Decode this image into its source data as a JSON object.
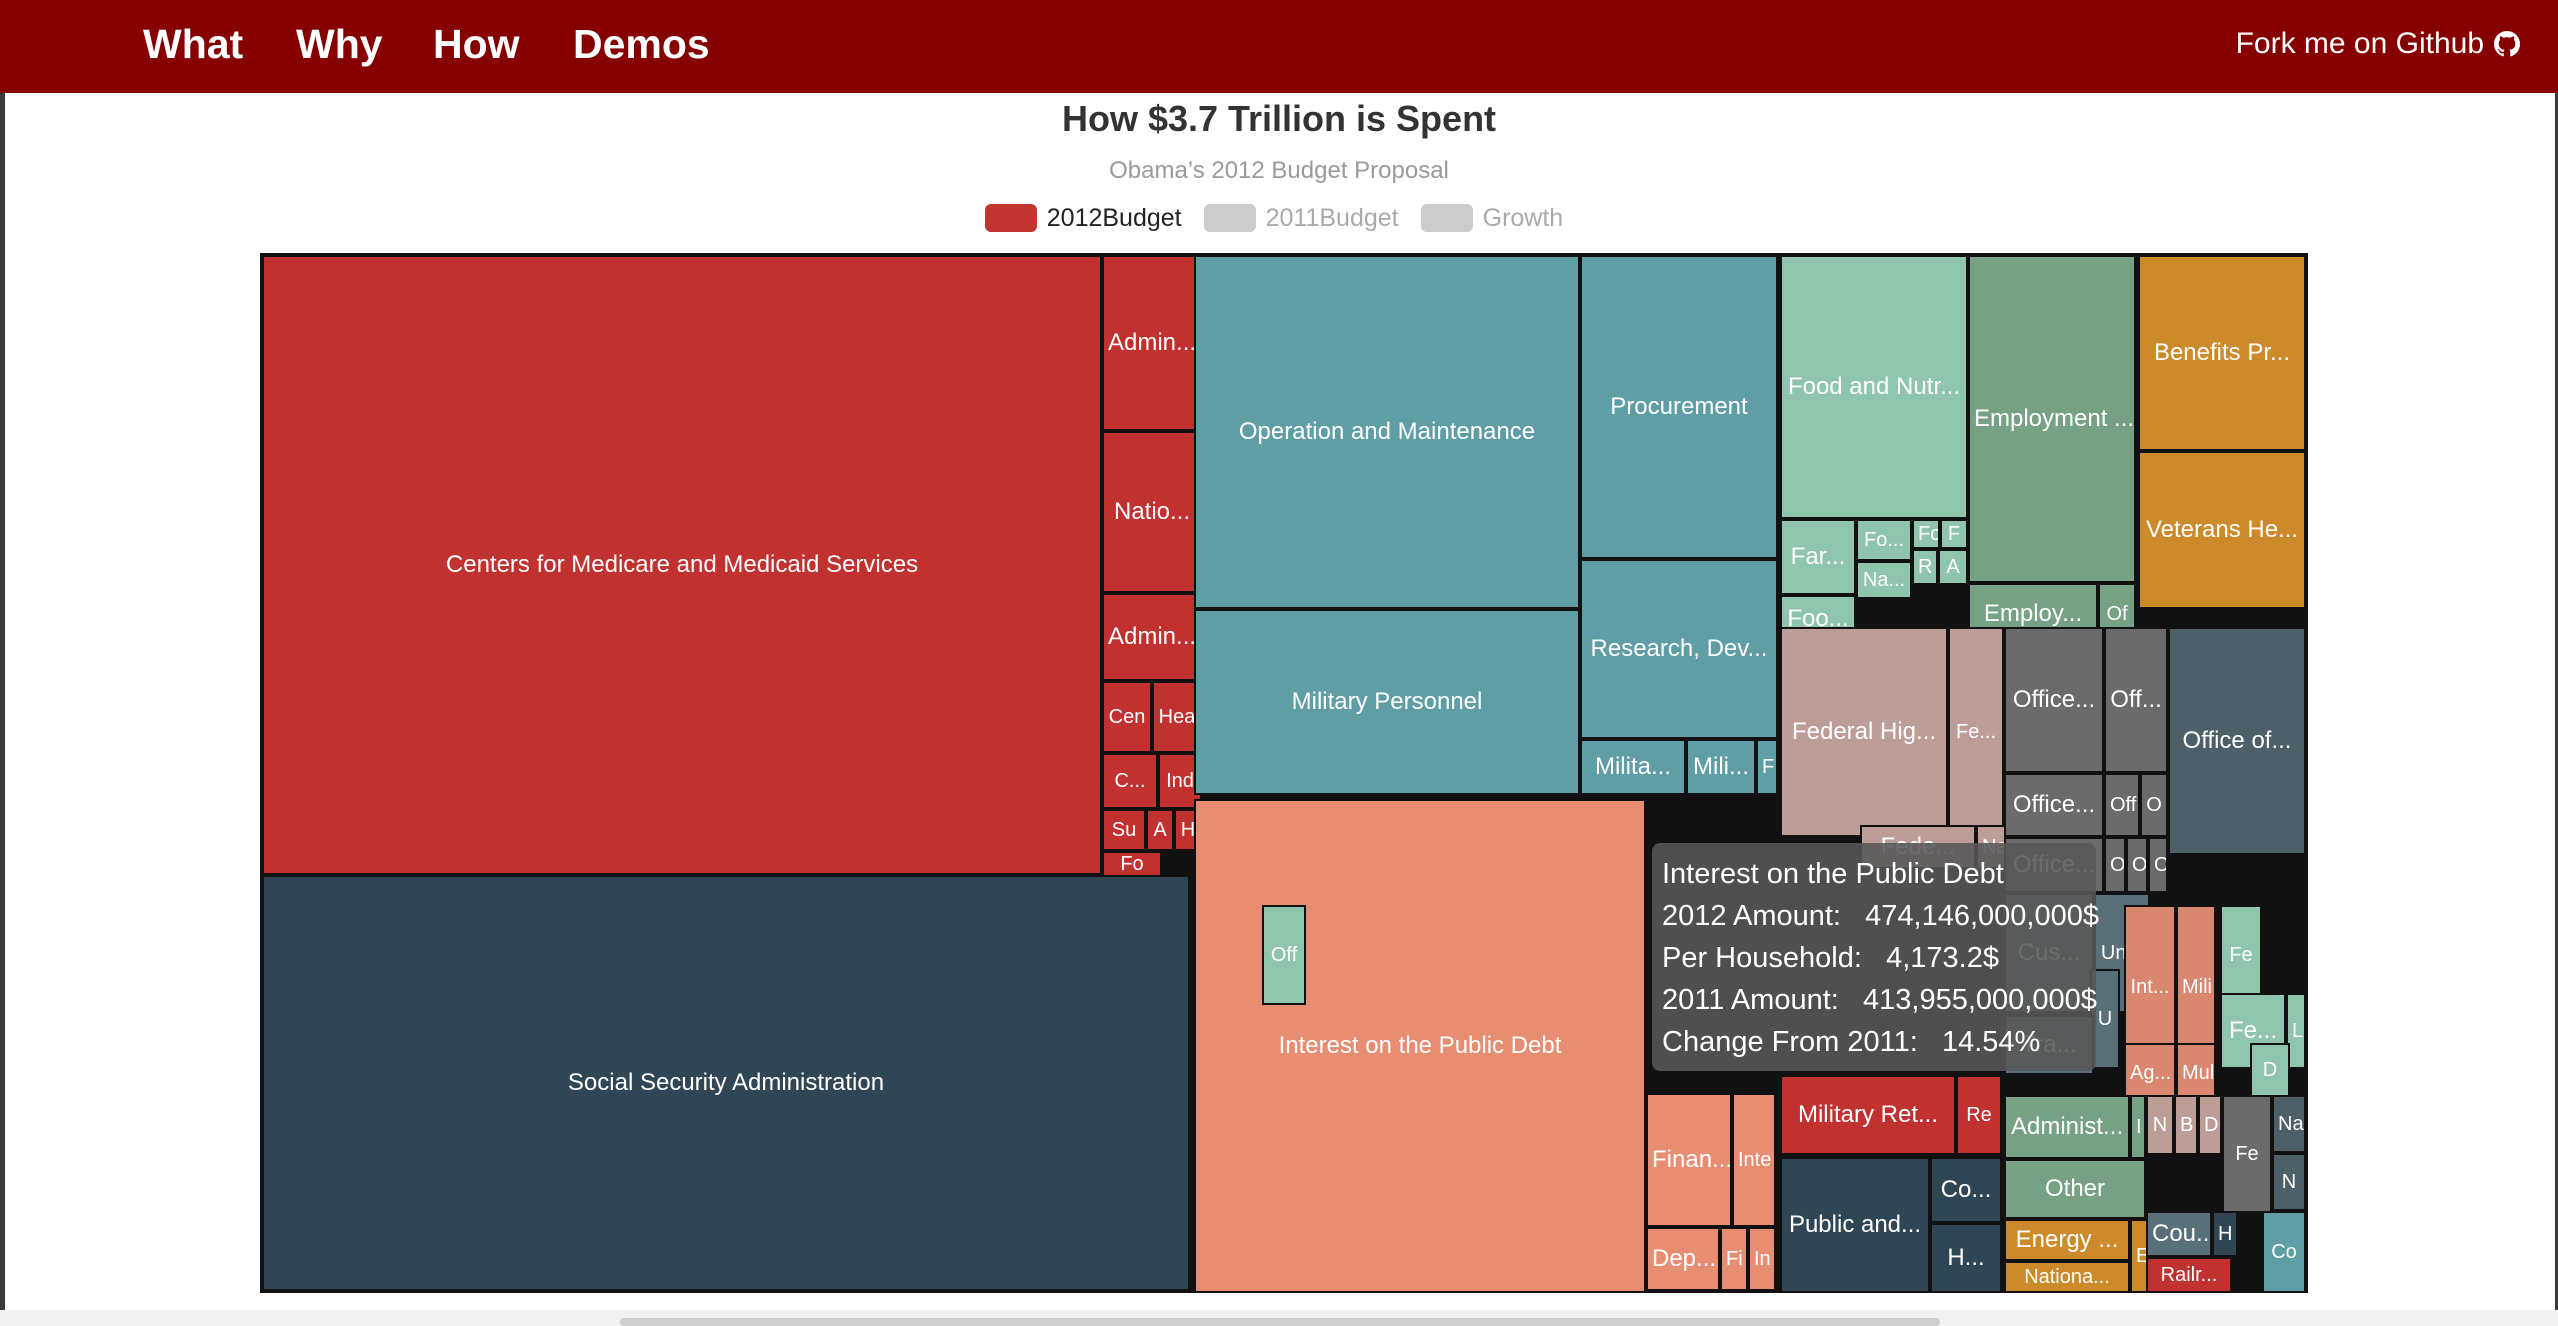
{
  "nav": {
    "links": [
      "What",
      "Why",
      "How",
      "Demos"
    ],
    "fork": "Fork me on Github"
  },
  "chart_data": {
    "type": "treemap",
    "title": "How $3.7 Trillion is Spent",
    "subtitle": "Obama’s 2012 Budget Proposal",
    "legend": [
      {
        "label": "2012Budget",
        "color": "#c23531",
        "active": true
      },
      {
        "label": "2011Budget",
        "color": "#cccccc",
        "active": false
      },
      {
        "label": "Growth",
        "color": "#cccccc",
        "active": false
      }
    ],
    "colors": {
      "hhs": "#c0312f",
      "ssa": "#304654",
      "defense": "#5f9ea5",
      "treasury": "#e78e72",
      "agriculture": "#8fc5ad",
      "labor": "#76a184",
      "va": "#cc8a2a",
      "transportation": "#bd9d98",
      "otherGray": "#6b6b6b",
      "opm": "#4d6068"
    },
    "items": [
      {
        "label": "Centers for Medicare and Medicaid Services",
        "group": "hhs"
      },
      {
        "label": "Admin...",
        "group": "hhs"
      },
      {
        "label": "Natio...",
        "group": "hhs"
      },
      {
        "label": "Admin...",
        "group": "hhs"
      },
      {
        "label": "Cen",
        "group": "hhs"
      },
      {
        "label": "Hea",
        "group": "hhs"
      },
      {
        "label": "C...",
        "group": "hhs"
      },
      {
        "label": "Ind",
        "group": "hhs"
      },
      {
        "label": "Su",
        "group": "hhs"
      },
      {
        "label": "A",
        "group": "hhs"
      },
      {
        "label": "H",
        "group": "hhs"
      },
      {
        "label": "Fo",
        "group": "hhs"
      },
      {
        "label": "Social Security Administration",
        "group": "ssa"
      },
      {
        "label": "Operation and Maintenance",
        "group": "defense"
      },
      {
        "label": "Procurement",
        "group": "defense"
      },
      {
        "label": "Military Personnel",
        "group": "defense"
      },
      {
        "label": "Research, Dev...",
        "group": "defense"
      },
      {
        "label": "Milita...",
        "group": "defense"
      },
      {
        "label": "Mili...",
        "group": "defense"
      },
      {
        "label": "F",
        "group": "defense"
      },
      {
        "label": "Interest on the Public Debt",
        "group": "treasury"
      },
      {
        "label": "Finan...",
        "group": "treasury"
      },
      {
        "label": "Inte",
        "group": "treasury"
      },
      {
        "label": "Dep...",
        "group": "treasury"
      },
      {
        "label": "Fi",
        "group": "treasury"
      },
      {
        "label": "In",
        "group": "treasury"
      },
      {
        "label": "Food and Nutr...",
        "group": "agriculture"
      },
      {
        "label": "Far...",
        "group": "agriculture"
      },
      {
        "label": "Fo...",
        "group": "agriculture"
      },
      {
        "label": "Fo",
        "group": "agriculture"
      },
      {
        "label": "F",
        "group": "agriculture"
      },
      {
        "label": "Na...",
        "group": "agriculture"
      },
      {
        "label": "R",
        "group": "agriculture"
      },
      {
        "label": "A",
        "group": "agriculture"
      },
      {
        "label": "Foo...",
        "group": "agriculture"
      },
      {
        "label": "Employment ...",
        "group": "labor"
      },
      {
        "label": "Employ...",
        "group": "labor"
      },
      {
        "label": "Of",
        "group": "labor"
      },
      {
        "label": "Benefits Pr...",
        "group": "va"
      },
      {
        "label": "Veterans He...",
        "group": "va"
      },
      {
        "label": "Federal Hig...",
        "group": "transportation"
      },
      {
        "label": "Fe...",
        "group": "transportation"
      },
      {
        "label": "Fede...",
        "group": "transportation"
      },
      {
        "label": "Nat",
        "group": "transportation"
      },
      {
        "label": "Office...",
        "group": "otherGray"
      },
      {
        "label": "Off...",
        "group": "otherGray"
      },
      {
        "label": "Office...",
        "group": "otherGray"
      },
      {
        "label": "Off",
        "group": "otherGray"
      },
      {
        "label": "O",
        "group": "otherGray"
      },
      {
        "label": "Office...",
        "group": "otherGray"
      },
      {
        "label": "O",
        "group": "otherGray"
      },
      {
        "label": "O",
        "group": "otherGray"
      },
      {
        "label": "O",
        "group": "otherGray"
      },
      {
        "label": "Office of...",
        "group": "opm"
      },
      {
        "label": "Cus...",
        "group": "homeland"
      },
      {
        "label": "Un...",
        "group": "homeland"
      },
      {
        "label": "U",
        "group": "homeland"
      },
      {
        "label": "Tra...",
        "group": "homeland"
      },
      {
        "label": "Int...",
        "group": "interior"
      },
      {
        "label": "Mili",
        "group": "interior"
      },
      {
        "label": "Ag...",
        "group": "interior"
      },
      {
        "label": "Mul",
        "group": "interior"
      },
      {
        "label": "Fe",
        "group": "agriculture"
      },
      {
        "label": "Off",
        "group": "agriculture"
      },
      {
        "label": "Fe...",
        "group": "agriculture"
      },
      {
        "label": "L",
        "group": "agriculture"
      },
      {
        "label": "D",
        "group": "agriculture"
      },
      {
        "label": "Military Ret...",
        "group": "hhs"
      },
      {
        "label": "Re",
        "group": "hhs"
      },
      {
        "label": "Public and...",
        "group": "ssa"
      },
      {
        "label": "Co...",
        "group": "ssa"
      },
      {
        "label": "H...",
        "group": "ssa"
      },
      {
        "label": "Administ...",
        "group": "labor"
      },
      {
        "label": "I",
        "group": "labor"
      },
      {
        "label": "Other",
        "group": "labor"
      },
      {
        "label": "N",
        "group": "transportation"
      },
      {
        "label": "B",
        "group": "transportation"
      },
      {
        "label": "D",
        "group": "transportation"
      },
      {
        "label": "Fe",
        "group": "otherGray"
      },
      {
        "label": "Na",
        "group": "opm"
      },
      {
        "label": "N",
        "group": "opm"
      },
      {
        "label": "Energy ...",
        "group": "va"
      },
      {
        "label": "En",
        "group": "va"
      },
      {
        "label": "Nationa...",
        "group": "va"
      },
      {
        "label": "Cou...",
        "group": "homeland"
      },
      {
        "label": "H",
        "group": "ssa"
      },
      {
        "label": "Co",
        "group": "defense"
      },
      {
        "label": "Railr...",
        "group": "hhs"
      }
    ],
    "tooltip": {
      "title": "Interest on the Public Debt",
      "rows": [
        {
          "label": "2012 Amount:",
          "value": "474,146,000,000$"
        },
        {
          "label": "Per Household:",
          "value": "4,173.2$"
        },
        {
          "label": "2011 Amount:",
          "value": "413,955,000,000$"
        },
        {
          "label": "Change From 2011:",
          "value": "14.54%"
        }
      ]
    }
  }
}
